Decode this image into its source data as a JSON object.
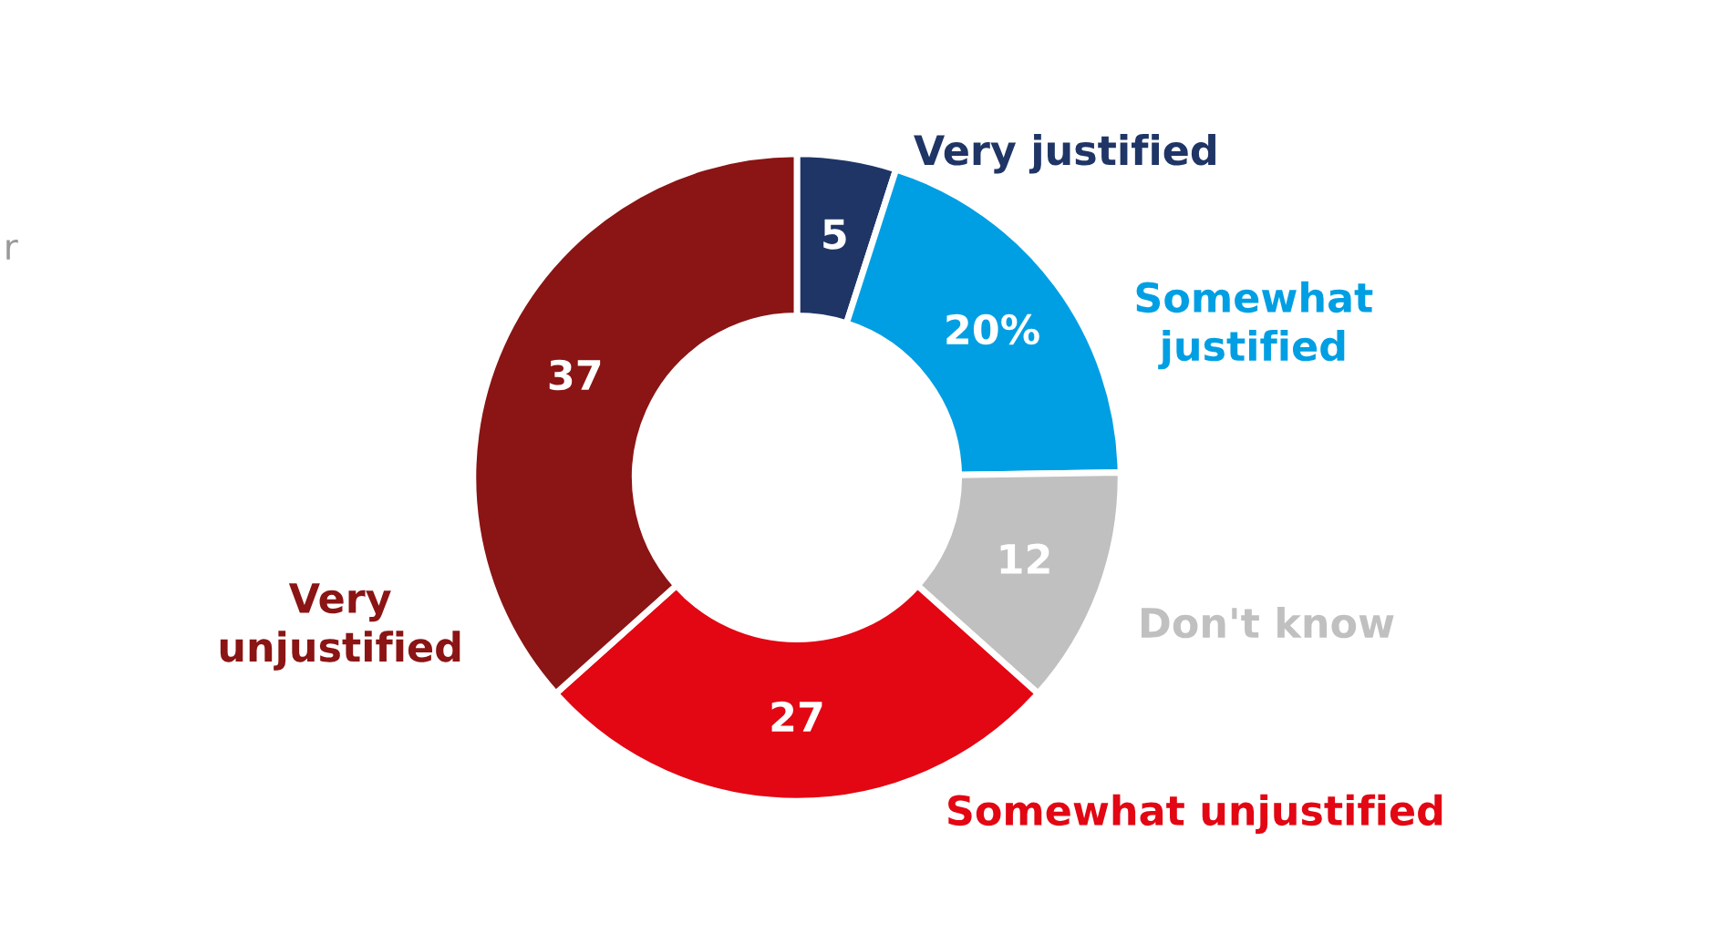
{
  "chart_data": {
    "type": "donut",
    "categories": [
      "Very justified",
      "Somewhat\njustified",
      "Don't know",
      "Somewhat unjustified",
      "Very\nunjustified"
    ],
    "values": [
      5,
      20,
      12,
      27,
      37
    ],
    "colors": [
      "#1f3566",
      "#009fe3",
      "#c0c0c0",
      "#e30613",
      "#8b1414"
    ],
    "value_labels": [
      "5",
      "20%",
      "12",
      "27",
      "37"
    ],
    "annotations": [
      "r"
    ],
    "legend": false
  }
}
